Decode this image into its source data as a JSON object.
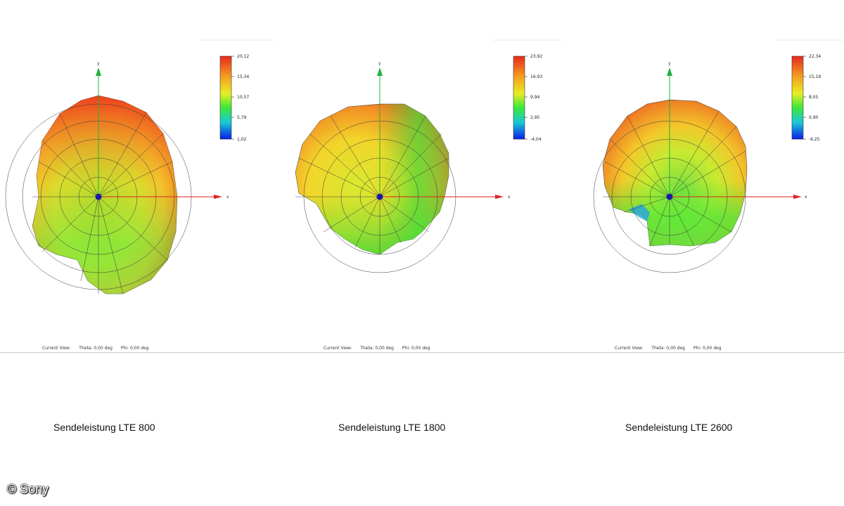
{
  "panels": [
    {
      "caption": "Sendeleistung LTE 800",
      "scale": [
        "20,12",
        "15,34",
        "10,57",
        "5,79",
        "1,02"
      ],
      "current_view": {
        "label": "Current View:",
        "theta": "Theta: 0,00 deg",
        "phi": "Phi: 0,00 deg"
      },
      "axis_y": "y",
      "axis_x": "x"
    },
    {
      "caption": "Sendeleistung LTE 1800",
      "scale": [
        "23,92",
        "16,93",
        "9,94",
        "2,95",
        "-4,04"
      ],
      "current_view": {
        "label": "Current View:",
        "theta": "Theta: 0,00 deg",
        "phi": "Phi: 0,00 deg"
      },
      "axis_y": "y",
      "axis_x": "x"
    },
    {
      "caption": "Sendeleistung LTE 2600",
      "scale": [
        "22,34",
        "15,19",
        "8,05",
        "0,90",
        "-6,25"
      ],
      "current_view": {
        "label": "Current View:",
        "theta": "Theta: 0,00 deg",
        "phi": "Phi: 0,00 deg"
      },
      "axis_y": "y",
      "axis_x": "x"
    }
  ],
  "copyright": "© Sony",
  "colors": {
    "high": "#e8281c",
    "mid": "#f0e020",
    "low_mid": "#38e838",
    "low": "#0a1ee6",
    "axis": "#e02020",
    "axis_y": "#20b040"
  }
}
